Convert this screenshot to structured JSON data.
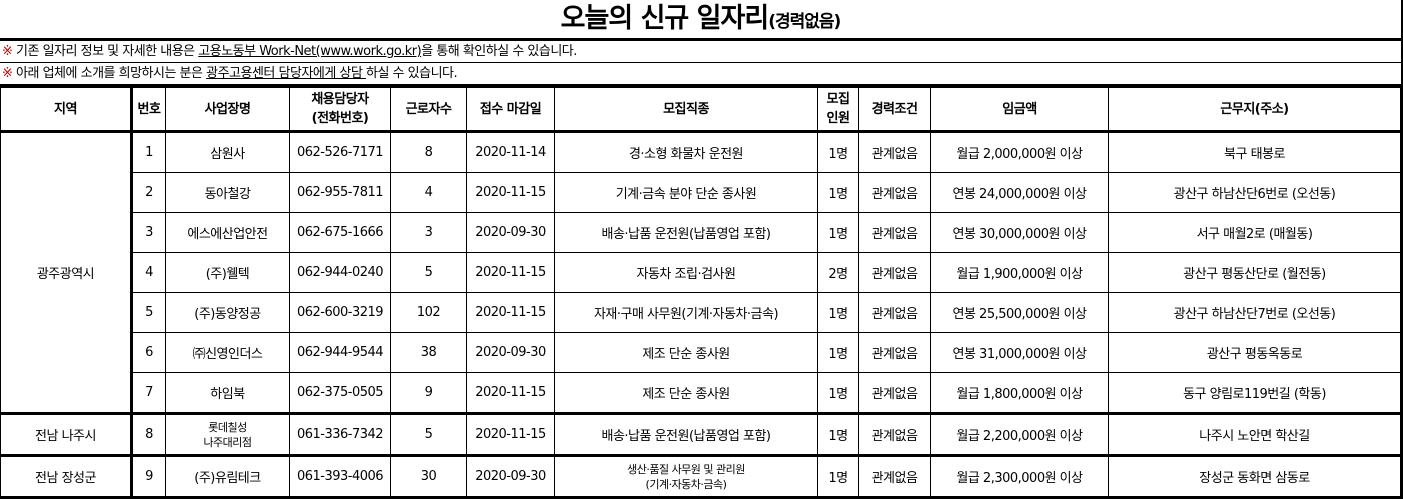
{
  "title": {
    "main": "오늘의 신규 일자리",
    "sub": "(경력없음)"
  },
  "notices": [
    {
      "mark": "※",
      "pre": " 기존 일자리 정보 및 자세한 내용은 ",
      "link": "고용노동부 Work-Net(www.work.go.kr)",
      "post": "을 통해 확인하실 수 있습니다."
    },
    {
      "mark": "※",
      "pre": " 아래 업체에 소개를 희망하시는 분은 ",
      "link": "광주고용센터 담당자에게 상담 ",
      "post": "하실 수 있습니다."
    }
  ],
  "headers": [
    "지역",
    "번호",
    "사업장명",
    "채용담당자\n(전화번호)",
    "근로자수",
    "접수 마감일",
    "모집직종",
    "모집\n인원",
    "경력조건",
    "임금액",
    "근무지(주소)"
  ],
  "regions": [
    {
      "name": "광주광역시",
      "rows": [
        [
          "1",
          "삼원사",
          "062-526-7171",
          "8",
          "2020-11-14",
          "경·소형 화물차 운전원",
          "1명",
          "관계없음",
          "월급 2,000,000원 이상",
          "북구 태봉로"
        ],
        [
          "2",
          "동아철강",
          "062-955-7811",
          "4",
          "2020-11-15",
          "기계·금속 분야 단순 종사원",
          "1명",
          "관계없음",
          "연봉 24,000,000원 이상",
          "광산구 하남산단6번로 (오선동)"
        ],
        [
          "3",
          "에스에산업안전",
          "062-675-1666",
          "3",
          "2020-09-30",
          "배송·납품 운전원(납품영업 포함)",
          "1명",
          "관계없음",
          "연봉 30,000,000원 이상",
          "서구 매월2로 (매월동)"
        ],
        [
          "4",
          "(주)웰텍",
          "062-944-0240",
          "5",
          "2020-11-15",
          "자동차 조립·검사원",
          "2명",
          "관계없음",
          "월급 1,900,000원 이상",
          "광산구 평동산단로 (월전동)"
        ],
        [
          "5",
          "(주)동양정공",
          "062-600-3219",
          "102",
          "2020-11-15",
          "자재·구매 사무원(기계·자동차·금속)",
          "1명",
          "관계없음",
          "연봉 25,500,000원 이상",
          "광산구 하남산단7번로 (오선동)"
        ],
        [
          "6",
          "㈜신영인더스",
          "062-944-9544",
          "38",
          "2020-09-30",
          "제조 단순 종사원",
          "1명",
          "관계없음",
          "연봉 31,000,000원 이상",
          "광산구 평동옥동로"
        ],
        [
          "7",
          "하임북",
          "062-375-0505",
          "9",
          "2020-11-15",
          "제조 단순 종사원",
          "1명",
          "관계없음",
          "월급 1,800,000원 이상",
          "동구 양림로119번길 (학동)"
        ]
      ]
    },
    {
      "name": "전남 나주시",
      "rows": [
        [
          "8",
          "롯데칠성\n나주대리점",
          "061-336-7342",
          "5",
          "2020-11-15",
          "배송·납품 운전원(납품영업 포함)",
          "1명",
          "관계없음",
          "월급 2,200,000원 이상",
          "나주시 노안면 학산길"
        ]
      ]
    },
    {
      "name": "전남 장성군",
      "rows": [
        [
          "9",
          "(주)유림테크",
          "061-393-4006",
          "30",
          "2020-09-30",
          "생산·품질 사무원 및 관리원\n(기계·자동차·금속)",
          "1명",
          "관계없음",
          "월급 2,300,000원 이상",
          "장성군 동화면 삼동로"
        ]
      ]
    }
  ]
}
